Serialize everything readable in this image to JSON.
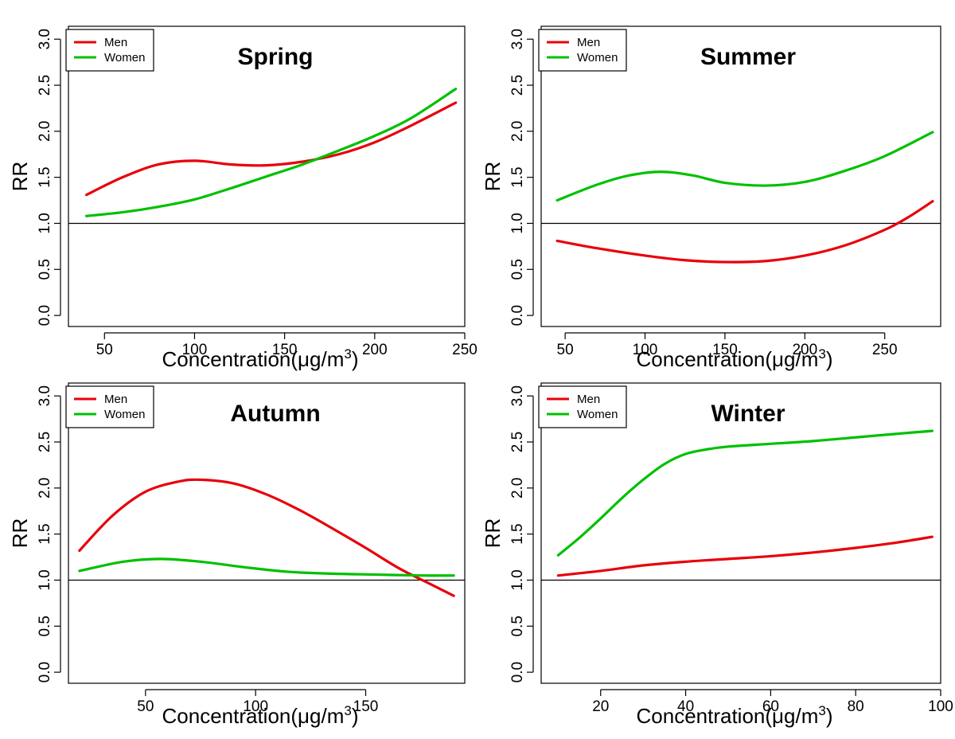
{
  "chart_data": [
    {
      "type": "line",
      "title": "Spring",
      "xlabel": "Concentration(μg/m",
      "xlabel_sup": "3",
      "xlabel_close": ")",
      "ylabel": "RR",
      "xlim": [
        30,
        250
      ],
      "ylim": [
        0,
        3.0
      ],
      "xticks": [
        50,
        100,
        150,
        200,
        250
      ],
      "yticks": [
        "0.0",
        "0.5",
        "1.0",
        "1.5",
        "2.0",
        "2.5",
        "3.0"
      ],
      "reference_line": 1.0,
      "legend": {
        "position": "top-left",
        "entries": [
          "Men",
          "Women"
        ]
      },
      "series": [
        {
          "name": "Men",
          "color": "#e8000b",
          "x": [
            40,
            60,
            80,
            100,
            120,
            140,
            160,
            180,
            200,
            220,
            245
          ],
          "y": [
            1.31,
            1.5,
            1.64,
            1.68,
            1.64,
            1.63,
            1.67,
            1.75,
            1.88,
            2.06,
            2.31
          ]
        },
        {
          "name": "Women",
          "color": "#00c000",
          "x": [
            40,
            60,
            80,
            100,
            120,
            140,
            160,
            180,
            200,
            220,
            245
          ],
          "y": [
            1.08,
            1.12,
            1.18,
            1.26,
            1.38,
            1.51,
            1.64,
            1.79,
            1.95,
            2.14,
            2.46
          ]
        }
      ]
    },
    {
      "type": "line",
      "title": "Summer",
      "xlabel": "Concentration(μg/m",
      "xlabel_sup": "3",
      "xlabel_close": ")",
      "ylabel": "RR",
      "xlim": [
        35,
        285
      ],
      "ylim": [
        0,
        3.0
      ],
      "xticks": [
        50,
        100,
        150,
        200,
        250
      ],
      "yticks": [
        "0.0",
        "0.5",
        "1.0",
        "1.5",
        "2.0",
        "2.5",
        "3.0"
      ],
      "reference_line": 1.0,
      "legend": {
        "position": "top-left",
        "entries": [
          "Men",
          "Women"
        ]
      },
      "series": [
        {
          "name": "Men",
          "color": "#e8000b",
          "x": [
            45,
            70,
            100,
            125,
            150,
            175,
            200,
            225,
            250,
            265,
            280
          ],
          "y": [
            0.81,
            0.73,
            0.65,
            0.6,
            0.58,
            0.59,
            0.65,
            0.76,
            0.93,
            1.07,
            1.24
          ]
        },
        {
          "name": "Women",
          "color": "#00c000",
          "x": [
            45,
            70,
            90,
            110,
            130,
            150,
            175,
            200,
            225,
            250,
            280
          ],
          "y": [
            1.25,
            1.42,
            1.52,
            1.56,
            1.52,
            1.44,
            1.41,
            1.45,
            1.57,
            1.73,
            1.99
          ]
        }
      ]
    },
    {
      "type": "line",
      "title": "Autumn",
      "xlabel": "Concentration(μg/m",
      "xlabel_sup": "3",
      "xlabel_close": ")",
      "ylabel": "RR",
      "xlim": [
        15,
        195
      ],
      "ylim": [
        0,
        3.0
      ],
      "xticks": [
        50,
        100,
        150
      ],
      "yticks": [
        "0.0",
        "0.5",
        "1.0",
        "1.5",
        "2.0",
        "2.5",
        "3.0"
      ],
      "reference_line": 1.0,
      "legend": {
        "position": "top-left",
        "entries": [
          "Men",
          "Women"
        ]
      },
      "series": [
        {
          "name": "Men",
          "color": "#e8000b",
          "x": [
            20,
            35,
            50,
            65,
            75,
            90,
            105,
            120,
            135,
            150,
            165,
            180,
            190
          ],
          "y": [
            1.32,
            1.7,
            1.96,
            2.07,
            2.09,
            2.05,
            1.93,
            1.76,
            1.56,
            1.35,
            1.13,
            0.95,
            0.83
          ]
        },
        {
          "name": "Women",
          "color": "#00c000",
          "x": [
            20,
            40,
            57,
            75,
            95,
            115,
            135,
            155,
            175,
            190
          ],
          "y": [
            1.1,
            1.2,
            1.23,
            1.2,
            1.14,
            1.09,
            1.07,
            1.06,
            1.05,
            1.05
          ]
        }
      ]
    },
    {
      "type": "line",
      "title": "Winter",
      "xlabel": "Concentration(μg/m",
      "xlabel_sup": "3",
      "xlabel_close": ")",
      "ylabel": "RR",
      "xlim": [
        6,
        100
      ],
      "ylim": [
        0,
        3.0
      ],
      "xticks": [
        20,
        40,
        60,
        80,
        100
      ],
      "yticks": [
        "0.0",
        "0.5",
        "1.0",
        "1.5",
        "2.0",
        "2.5",
        "3.0"
      ],
      "reference_line": 1.0,
      "legend": {
        "position": "top-left",
        "entries": [
          "Men",
          "Women"
        ]
      },
      "series": [
        {
          "name": "Men",
          "color": "#e8000b",
          "x": [
            10,
            20,
            30,
            40,
            50,
            60,
            70,
            80,
            90,
            98
          ],
          "y": [
            1.05,
            1.1,
            1.16,
            1.2,
            1.23,
            1.26,
            1.3,
            1.35,
            1.41,
            1.47
          ]
        },
        {
          "name": "Women",
          "color": "#00c000",
          "x": [
            10,
            15,
            20,
            25,
            30,
            35,
            40,
            45,
            50,
            60,
            70,
            80,
            90,
            98
          ],
          "y": [
            1.27,
            1.46,
            1.67,
            1.89,
            2.09,
            2.26,
            2.37,
            2.42,
            2.45,
            2.48,
            2.51,
            2.55,
            2.59,
            2.62
          ]
        }
      ]
    }
  ]
}
